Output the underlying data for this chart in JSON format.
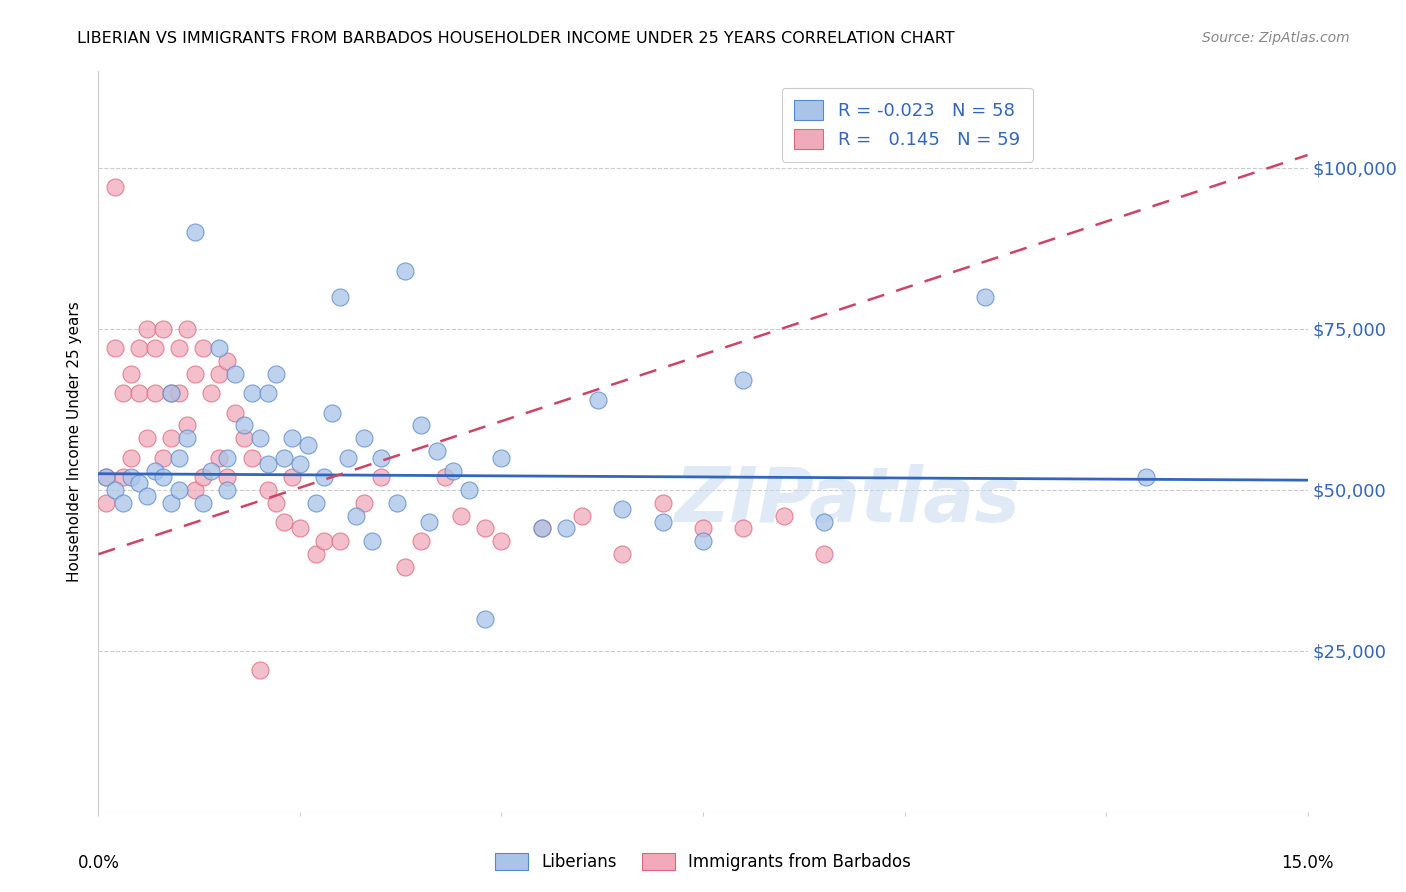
{
  "title": "LIBERIAN VS IMMIGRANTS FROM BARBADOS HOUSEHOLDER INCOME UNDER 25 YEARS CORRELATION CHART",
  "source": "Source: ZipAtlas.com",
  "ylabel": "Householder Income Under 25 years",
  "legend_label1": "Liberians",
  "legend_label2": "Immigrants from Barbados",
  "R1": "-0.023",
  "N1": "58",
  "R2": "0.145",
  "N2": "59",
  "color_blue_fill": "#aac4e8",
  "color_blue_edge": "#5588cc",
  "color_pink_fill": "#f0aabb",
  "color_pink_edge": "#dd6677",
  "color_blue_line": "#3366bb",
  "color_pink_line": "#cc4466",
  "watermark": "ZIPatlas",
  "ytick_labels": [
    "$25,000",
    "$50,000",
    "$75,000",
    "$100,000"
  ],
  "ytick_values": [
    25000,
    50000,
    75000,
    100000
  ],
  "xlim": [
    0.0,
    0.15
  ],
  "ylim": [
    0,
    115000
  ],
  "blue_line_y0": 52500,
  "blue_line_y1": 51500,
  "pink_line_y0": 40000,
  "pink_line_y1": 102000,
  "blue_scatter_x": [
    0.001,
    0.002,
    0.003,
    0.004,
    0.005,
    0.006,
    0.007,
    0.008,
    0.009,
    0.009,
    0.01,
    0.01,
    0.011,
    0.012,
    0.013,
    0.014,
    0.015,
    0.016,
    0.016,
    0.017,
    0.018,
    0.019,
    0.02,
    0.021,
    0.021,
    0.022,
    0.023,
    0.024,
    0.025,
    0.026,
    0.027,
    0.028,
    0.029,
    0.03,
    0.031,
    0.032,
    0.033,
    0.034,
    0.035,
    0.037,
    0.038,
    0.04,
    0.041,
    0.042,
    0.044,
    0.046,
    0.048,
    0.05,
    0.055,
    0.058,
    0.062,
    0.065,
    0.07,
    0.075,
    0.08,
    0.09,
    0.11,
    0.13
  ],
  "blue_scatter_y": [
    52000,
    50000,
    48000,
    52000,
    51000,
    49000,
    53000,
    52000,
    65000,
    48000,
    55000,
    50000,
    58000,
    90000,
    48000,
    53000,
    72000,
    55000,
    50000,
    68000,
    60000,
    65000,
    58000,
    65000,
    54000,
    68000,
    55000,
    58000,
    54000,
    57000,
    48000,
    52000,
    62000,
    80000,
    55000,
    46000,
    58000,
    42000,
    55000,
    48000,
    84000,
    60000,
    45000,
    56000,
    53000,
    50000,
    30000,
    55000,
    44000,
    44000,
    64000,
    47000,
    45000,
    42000,
    67000,
    45000,
    80000,
    52000
  ],
  "pink_scatter_x": [
    0.001,
    0.001,
    0.002,
    0.002,
    0.003,
    0.003,
    0.004,
    0.004,
    0.005,
    0.005,
    0.006,
    0.006,
    0.007,
    0.007,
    0.008,
    0.008,
    0.009,
    0.009,
    0.01,
    0.01,
    0.011,
    0.011,
    0.012,
    0.012,
    0.013,
    0.013,
    0.014,
    0.015,
    0.015,
    0.016,
    0.016,
    0.017,
    0.018,
    0.019,
    0.02,
    0.021,
    0.022,
    0.023,
    0.024,
    0.025,
    0.027,
    0.028,
    0.03,
    0.033,
    0.035,
    0.038,
    0.04,
    0.043,
    0.045,
    0.048,
    0.05,
    0.055,
    0.06,
    0.065,
    0.07,
    0.075,
    0.08,
    0.085,
    0.09
  ],
  "pink_scatter_y": [
    52000,
    48000,
    97000,
    72000,
    52000,
    65000,
    68000,
    55000,
    72000,
    65000,
    75000,
    58000,
    72000,
    65000,
    75000,
    55000,
    65000,
    58000,
    72000,
    65000,
    75000,
    60000,
    68000,
    50000,
    72000,
    52000,
    65000,
    68000,
    55000,
    70000,
    52000,
    62000,
    58000,
    55000,
    22000,
    50000,
    48000,
    45000,
    52000,
    44000,
    40000,
    42000,
    42000,
    48000,
    52000,
    38000,
    42000,
    52000,
    46000,
    44000,
    42000,
    44000,
    46000,
    40000,
    48000,
    44000,
    44000,
    46000,
    40000
  ]
}
